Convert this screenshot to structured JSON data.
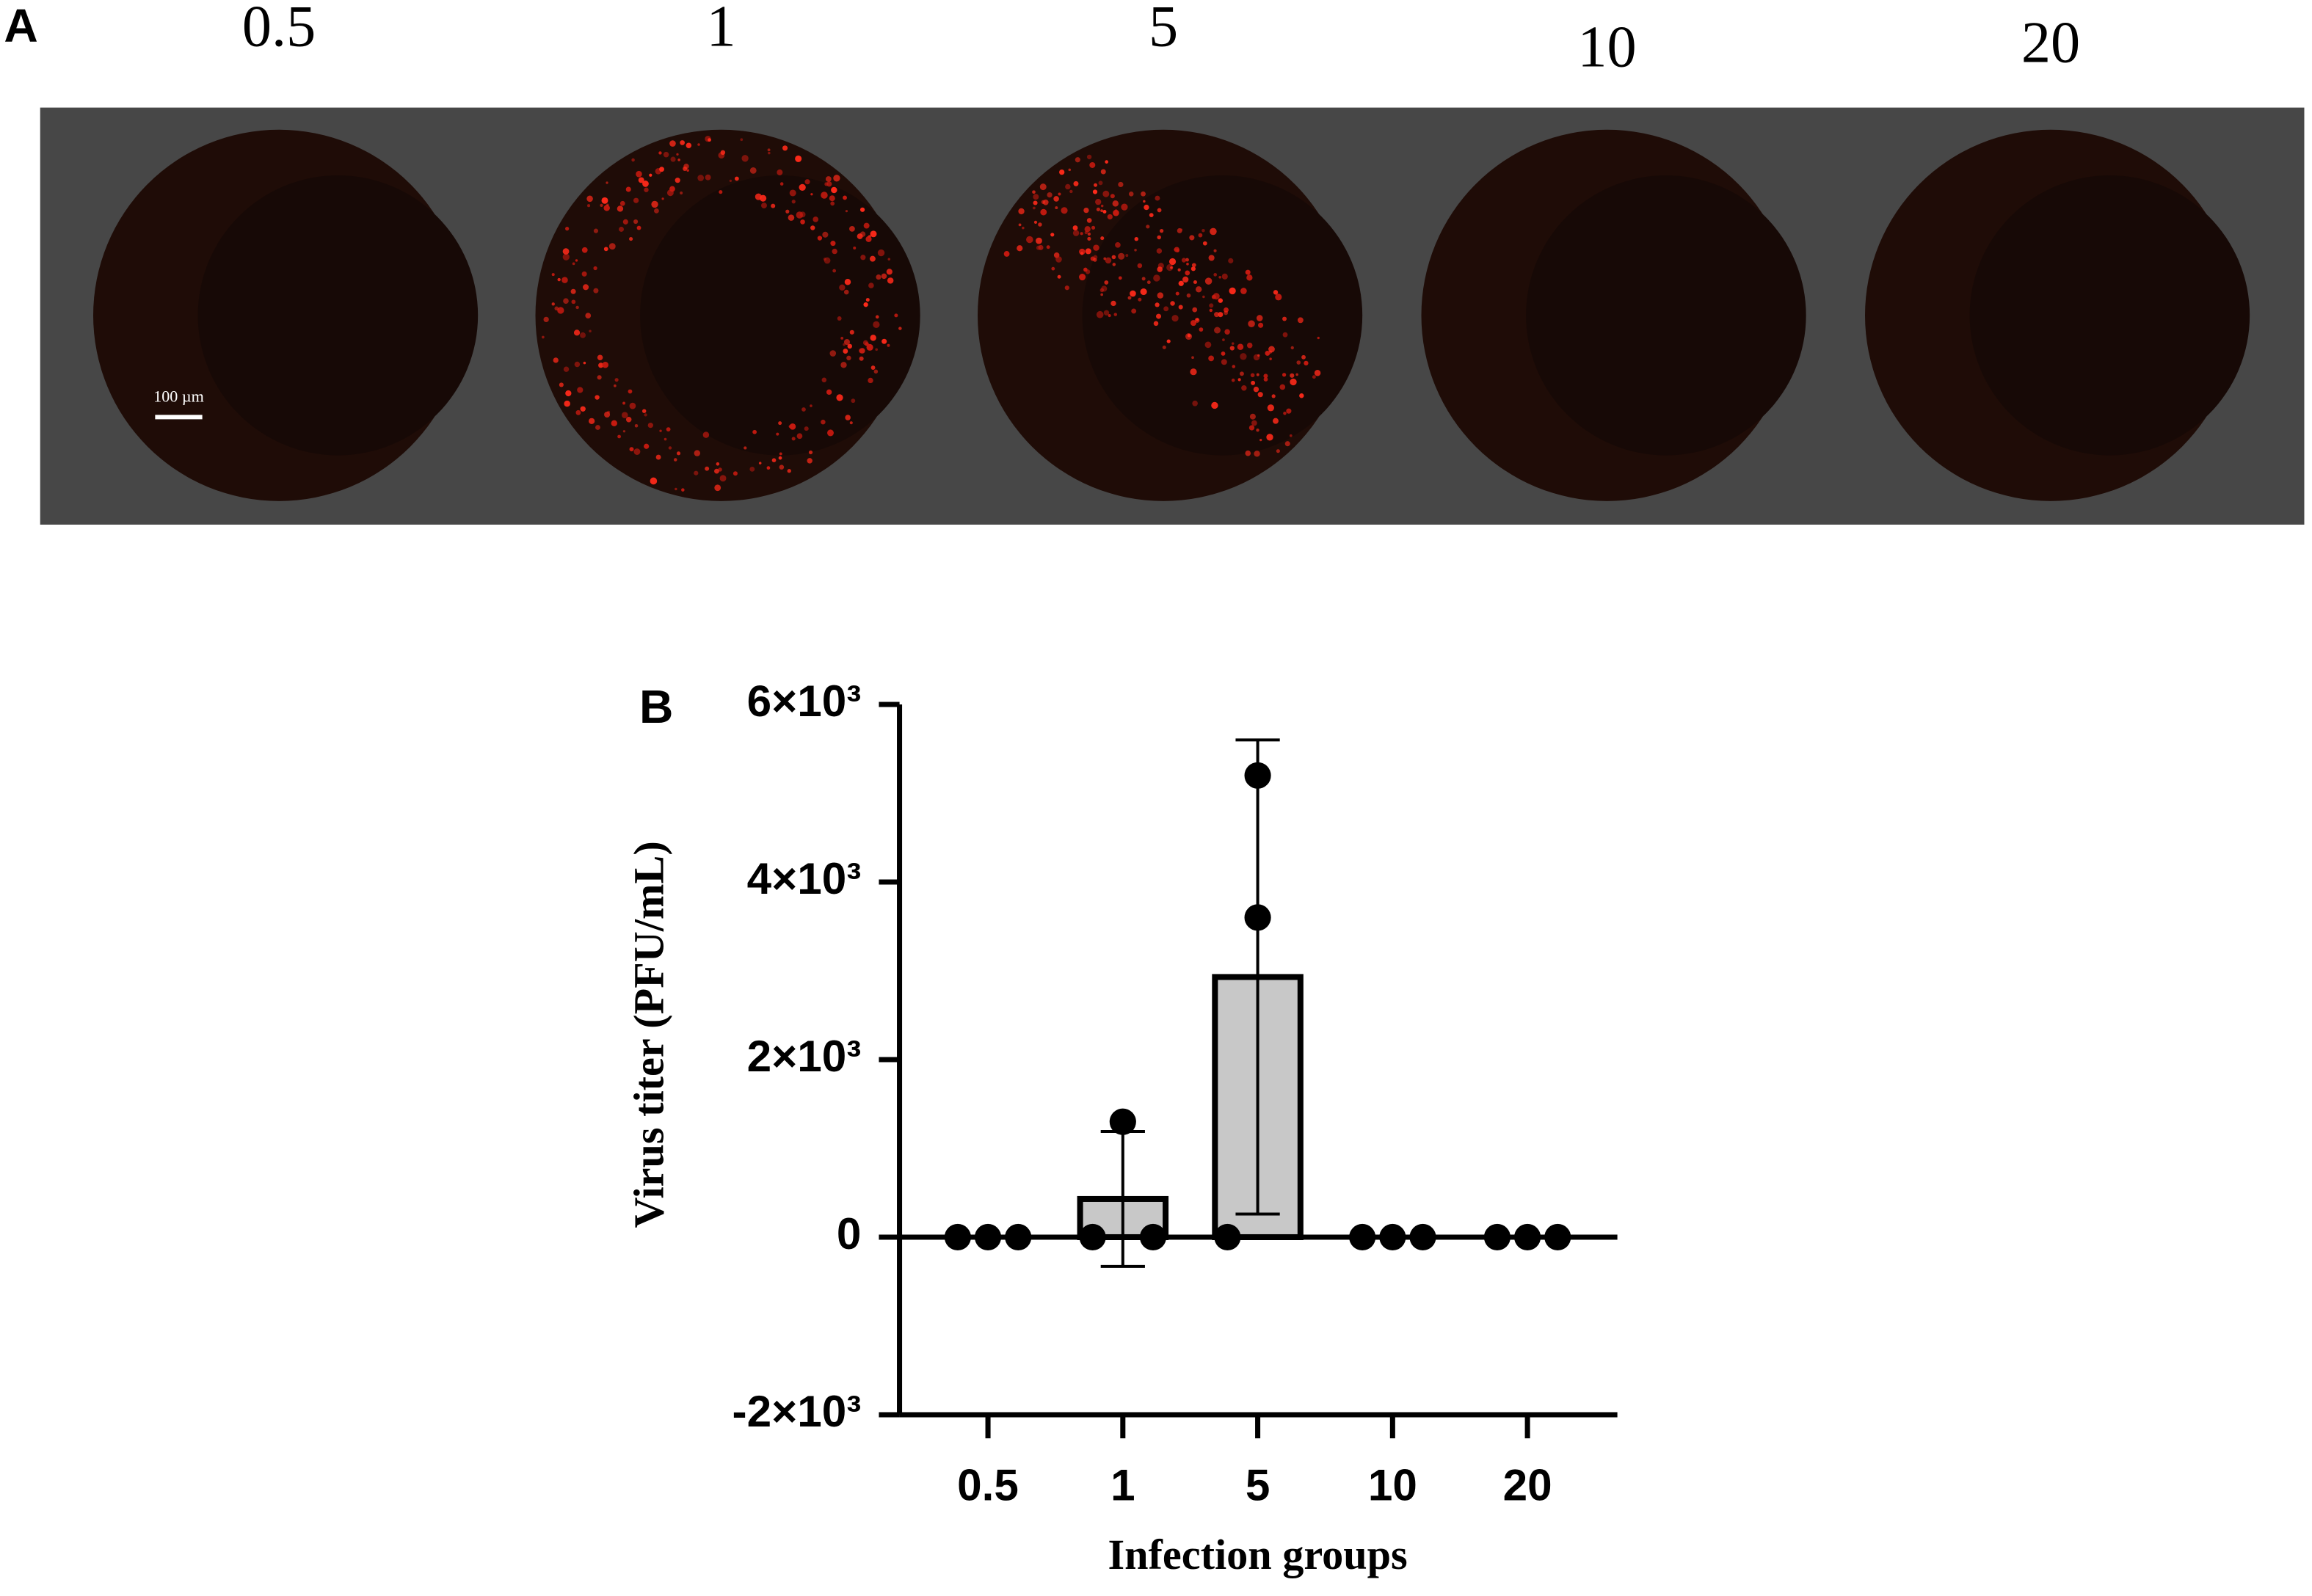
{
  "panel_a": {
    "label": "A",
    "titles": [
      "0.5",
      "1",
      "5",
      "10",
      "20"
    ],
    "scale_bar": "100 µm"
  },
  "chart_data": {
    "type": "bar",
    "panel_label": "B",
    "categories": [
      "0.5",
      "1",
      "5",
      "10",
      "20"
    ],
    "values": [
      0,
      430,
      2930,
      0,
      0
    ],
    "errors": [
      0,
      760,
      2670,
      0,
      0
    ],
    "points": [
      [
        0,
        0,
        0
      ],
      [
        0,
        1300,
        0
      ],
      [
        0,
        5200,
        3600
      ],
      [
        0,
        0,
        0
      ],
      [
        0,
        0,
        0
      ]
    ],
    "color": "#c8c8c8",
    "ylim": [
      -2000,
      6000
    ],
    "yticks": [
      {
        "value": -2000,
        "label": "-2×10³"
      },
      0,
      {
        "value": 2000,
        "label": "2×10³"
      },
      {
        "value": 4000,
        "label": "4×10³"
      },
      {
        "value": 6000,
        "label": "6×10³"
      }
    ],
    "ylabel": "Virus titer (PFU/mL)",
    "xlabel": "Infection groups"
  }
}
